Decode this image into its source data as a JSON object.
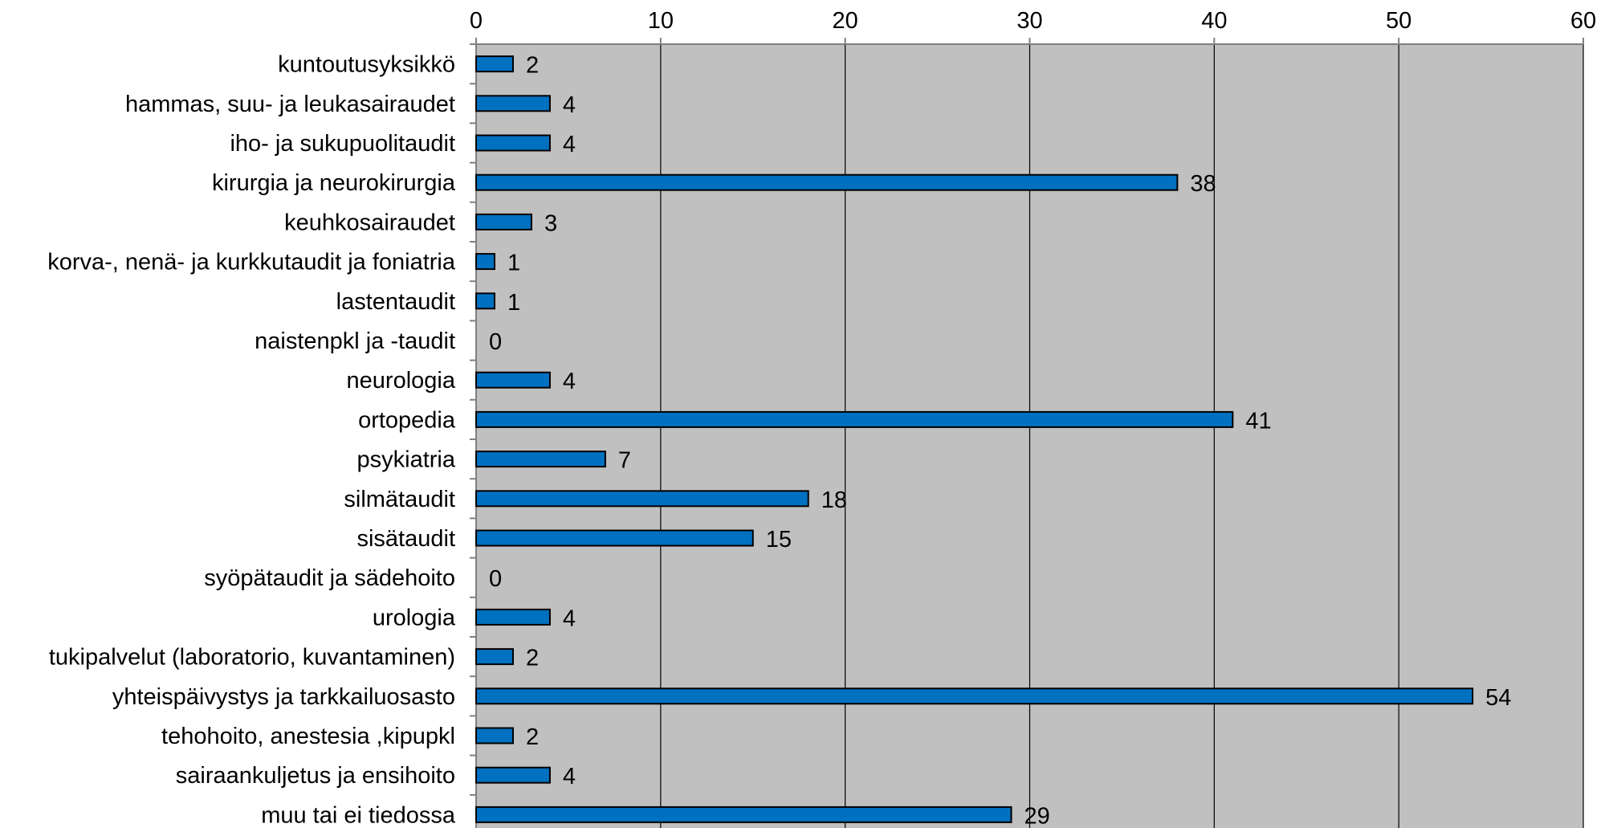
{
  "chart_data": {
    "type": "bar",
    "orientation": "horizontal",
    "categories": [
      "kuntoutusyksikkö",
      "hammas, suu- ja leukasairaudet",
      "iho- ja sukupuolitaudit",
      "kirurgia ja neurokirurgia",
      "keuhkosairaudet",
      "korva-, nenä- ja kurkkutaudit ja foniatria",
      "lastentaudit",
      "naistenpkl ja -taudit",
      "neurologia",
      "ortopedia",
      "psykiatria",
      "silmätaudit",
      "sisätaudit",
      "syöpätaudit ja sädehoito",
      "urologia",
      "tukipalvelut (laboratorio, kuvantaminen)",
      "yhteispäivystys ja tarkkailuosasto",
      "tehohoito, anestesia ,kipupkl",
      "sairaankuljetus ja ensihoito",
      "muu tai ei tiedossa"
    ],
    "values": [
      2,
      4,
      4,
      38,
      3,
      1,
      1,
      0,
      4,
      41,
      7,
      18,
      15,
      0,
      4,
      2,
      54,
      2,
      4,
      29
    ],
    "xlim": [
      0,
      60
    ],
    "xticks": [
      0,
      10,
      20,
      30,
      40,
      50,
      60
    ],
    "x_axis_position": "top",
    "grid": true,
    "bar_color": "#0070c0",
    "bar_edge_color": "#000000",
    "plot_background": "#c0c0c0",
    "gridline_color": "#000000",
    "data_labels": true,
    "title": "",
    "xlabel": "",
    "ylabel": ""
  }
}
